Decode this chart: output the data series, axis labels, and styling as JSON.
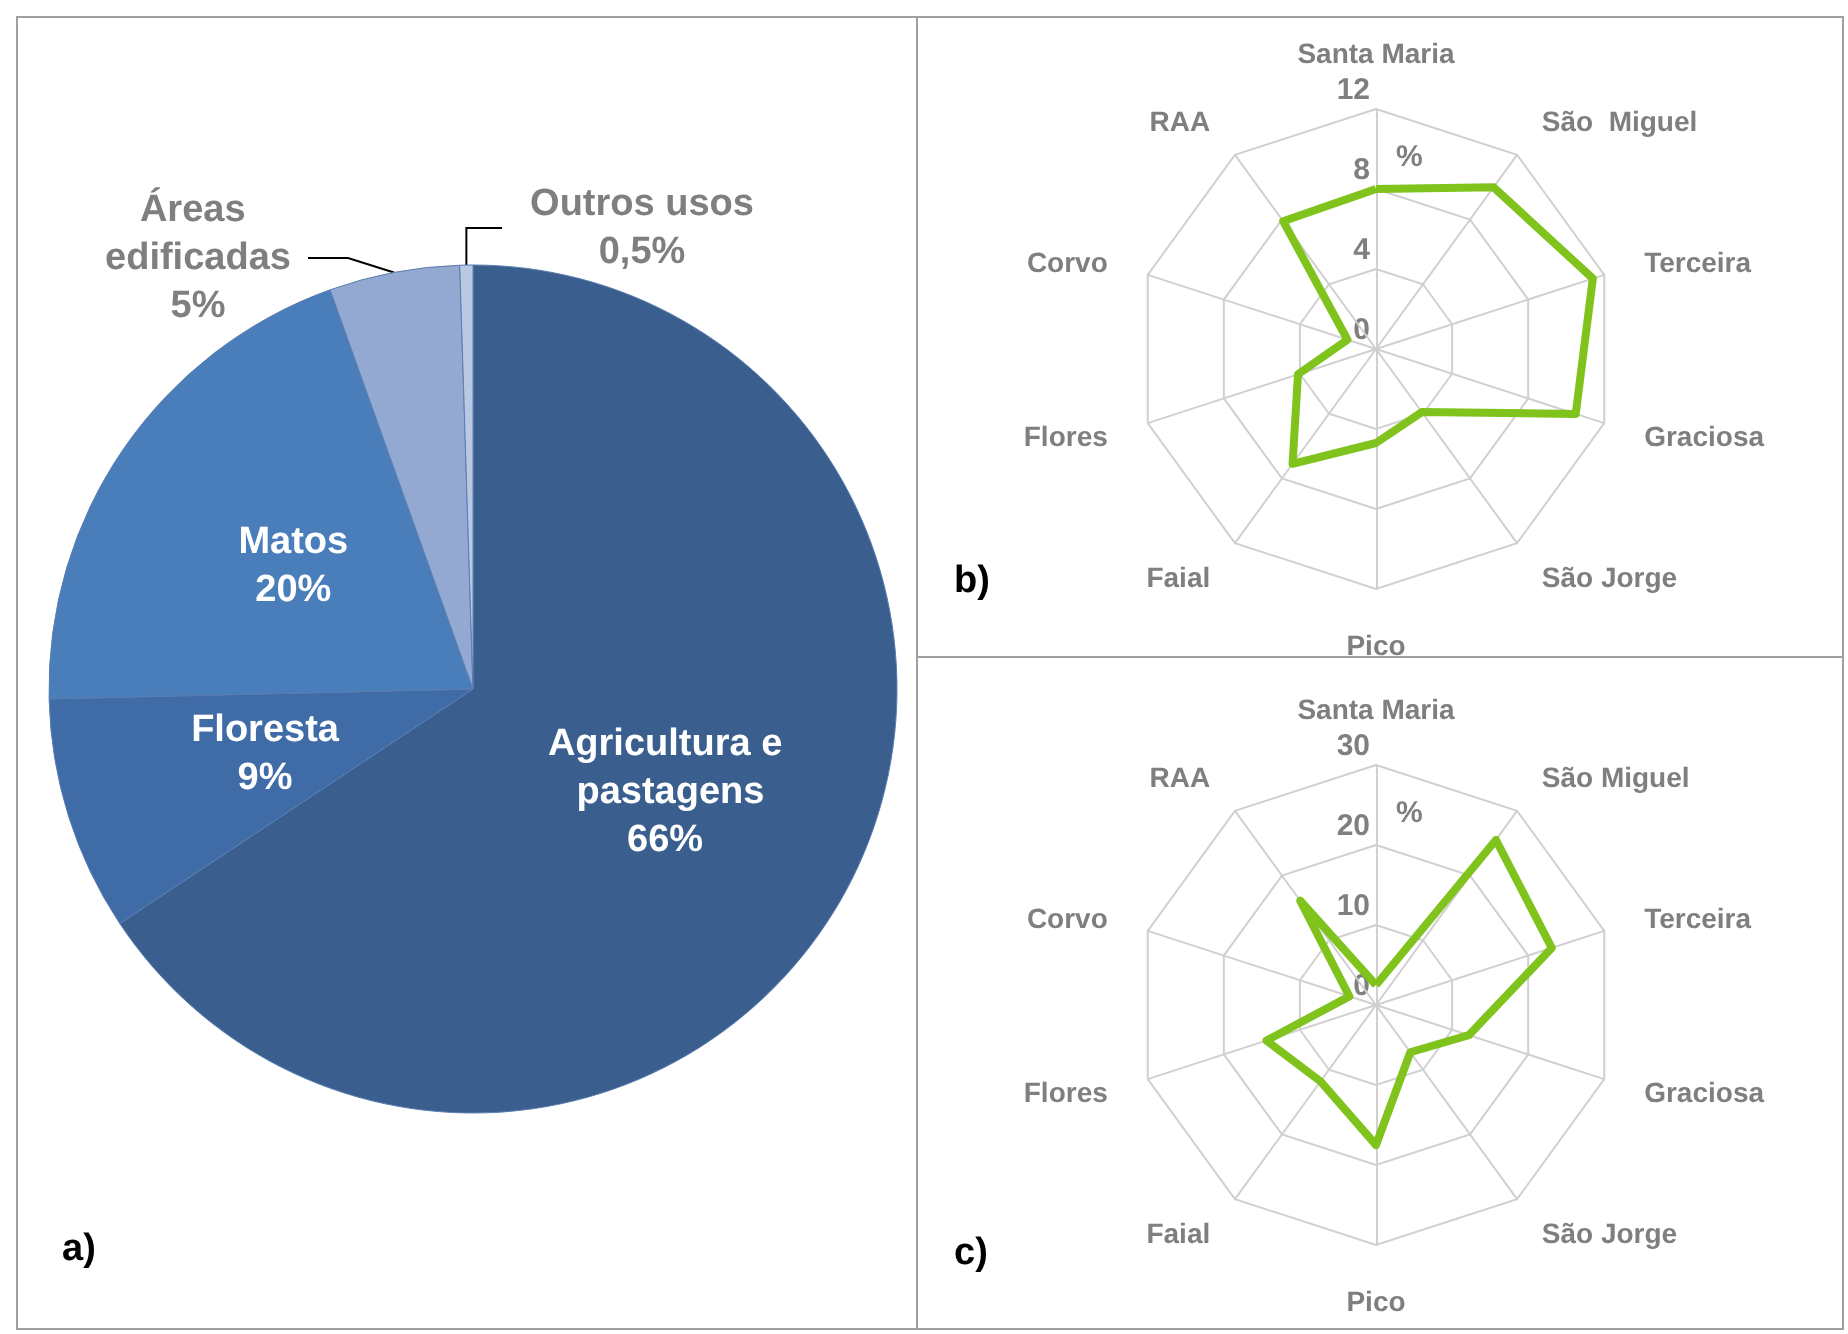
{
  "chart_data": [
    {
      "type": "pie",
      "categories": [
        "Agricultura e pastagens",
        "Floresta",
        "Matos",
        "Áreas edificadas",
        "Outros usos"
      ],
      "values": [
        66,
        9,
        20,
        5,
        0.5
      ],
      "value_labels": [
        "66%",
        "9%",
        "20%",
        "5%",
        "0,5%"
      ],
      "colors": [
        "#3a5f8e",
        "#3f6ca6",
        "#4a7ebb",
        "#93a9d2",
        "#b9c9e4"
      ],
      "legend": false,
      "annotations": [
        "a)"
      ]
    },
    {
      "type": "radar",
      "categories": [
        "Santa Maria",
        "São  Miguel",
        "Terceira",
        "Graciosa",
        "São Jorge",
        "Pico",
        "Faial",
        "Flores",
        "Corvo",
        "RAA"
      ],
      "series": [
        {
          "color": "#7fc31c",
          "values": [
            8,
            10,
            11.4,
            10.5,
            3.9,
            4.7,
            7.1,
            4.1,
            1.5,
            7.9
          ]
        }
      ],
      "ylim": [
        0,
        12
      ],
      "yticks": [
        0,
        4,
        8,
        12
      ],
      "ylabel": "%",
      "legend": false,
      "annotations": [
        "b)"
      ]
    },
    {
      "type": "radar",
      "categories": [
        "Santa Maria",
        "São Miguel",
        "Terceira",
        "Graciosa",
        "São Jorge",
        "Pico",
        "Faial",
        "Flores",
        "Corvo",
        "RAA"
      ],
      "series": [
        {
          "color": "#7fc31c",
          "values": [
            2.5,
            25.5,
            23.1,
            12.2,
            7.3,
            17.5,
            11.8,
            14.4,
            3.5,
            16.1
          ]
        }
      ],
      "ylim": [
        0,
        30
      ],
      "yticks": [
        0,
        10,
        20,
        30
      ],
      "ylabel": "%",
      "legend": false,
      "annotations": [
        "c)"
      ]
    }
  ]
}
